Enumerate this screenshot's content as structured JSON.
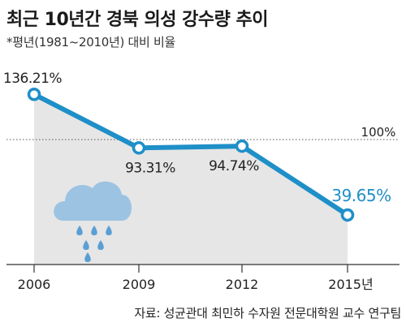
{
  "header": {
    "title": "최근 10년간 경북 의성 강수량 추이",
    "subtitle": "*평년(1981~2010년) 대비 비율"
  },
  "footer": {
    "source": "자료: 성균관대 최민하 수자원 전문대학원 교수 연구팀"
  },
  "colors": {
    "line": "#1f8fc8",
    "area": "#e6e6e6",
    "highlight_label": "#1f8fc8",
    "cloud": "#9dc3e3",
    "drop": "#5a9fd4"
  },
  "icon": "rain-cloud-icon",
  "chart_data": {
    "type": "line",
    "title": "최근 10년간 경북 의성 강수량 추이",
    "subtitle": "*평년(1981~2010년) 대비 비율",
    "x": [
      2006,
      2009,
      2012,
      2015
    ],
    "x_tick_labels": [
      "2006",
      "2009",
      "2012",
      "2015년"
    ],
    "series": [
      {
        "values": [
          136.21,
          93.31,
          94.74,
          39.65
        ],
        "labels": [
          "136.21%",
          "93.31%",
          "94.74%",
          "39.65%"
        ]
      }
    ],
    "reference_line": {
      "value": 100,
      "label": "100%",
      "style": "dotted"
    },
    "ylim": [
      0,
      160
    ],
    "grid": false,
    "area_fill": true
  }
}
